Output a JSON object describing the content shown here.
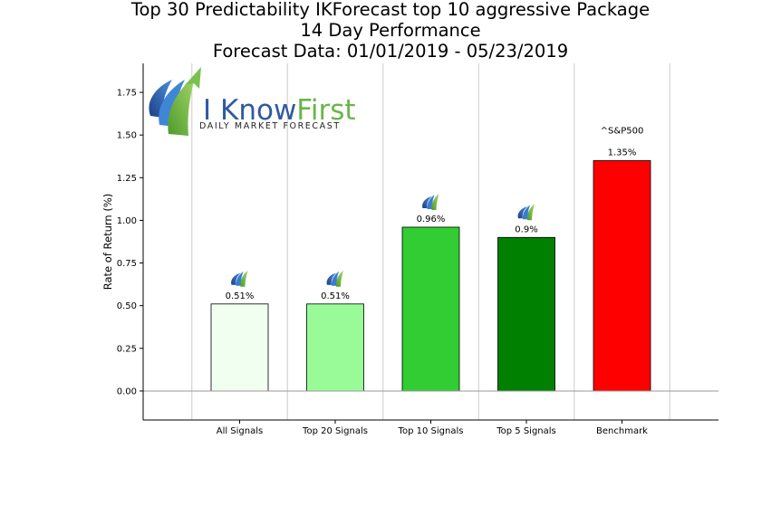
{
  "title_lines": [
    "Top 30 Predictability IKForecast top 10 aggressive Package",
    "14 Day Performance",
    "Forecast Data: 01/01/2019 - 05/23/2019"
  ],
  "logo": {
    "word_dark": "I Know",
    "word_light": "First",
    "tagline": "Daily Market Forecast",
    "icon": "i-know-first-logo-icon"
  },
  "colors": {
    "logo_dark": "#2f5aa0",
    "logo_light": "#6bb54a"
  },
  "chart_data": {
    "type": "bar",
    "ylabel": "Rate of Return (%)",
    "xlabel": "",
    "ylim": [
      -0.17,
      1.92
    ],
    "yticks": [
      "0.00",
      "0.25",
      "0.50",
      "0.75",
      "1.00",
      "1.25",
      "1.50",
      "1.75"
    ],
    "grid": "vertical",
    "categories": [
      "All Signals",
      "Top 20 Signals",
      "Top 10 Signals",
      "Top 5 Signals",
      "Benchmark"
    ],
    "values": [
      0.51,
      0.51,
      0.96,
      0.9,
      1.35
    ],
    "value_labels": [
      "0.51%",
      "0.51%",
      "0.96%",
      "0.9%",
      "1.35%"
    ],
    "colors": [
      "#f0fff0",
      "#98fb98",
      "#32cd32",
      "#008000",
      "#ff0000"
    ],
    "bar_icons": [
      "i-know-first-mini-icon",
      "i-know-first-mini-icon",
      "i-know-first-mini-icon",
      "i-know-first-mini-icon",
      ""
    ],
    "annotation": "^S&P500"
  }
}
